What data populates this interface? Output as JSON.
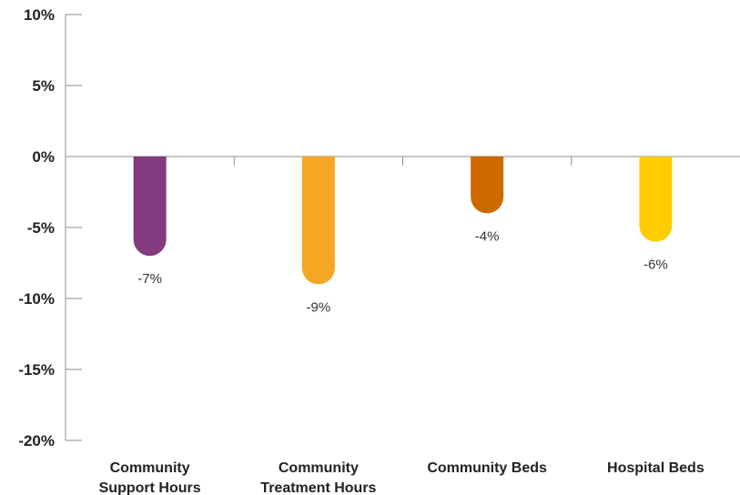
{
  "chart_data": {
    "type": "bar",
    "categories": [
      [
        "Community",
        "Support Hours"
      ],
      [
        "Community",
        "Treatment Hours"
      ],
      [
        "Community Beds"
      ],
      [
        "Hospital Beds"
      ]
    ],
    "values": [
      -7,
      -9,
      -4,
      -6
    ],
    "data_labels": [
      "-7%",
      "-9%",
      "-4%",
      "-6%"
    ],
    "colors": [
      "#833a7e",
      "#f5a623",
      "#cc6a00",
      "#ffcc00"
    ],
    "ylim": [
      -20,
      10
    ],
    "y_ticks": [
      10,
      5,
      0,
      -5,
      -10,
      -15,
      -20
    ],
    "y_tick_labels": [
      "10%",
      "5%",
      "0%",
      "-5%",
      "-10%",
      "-15%",
      "-20%"
    ],
    "grid": false,
    "legend": "none"
  }
}
